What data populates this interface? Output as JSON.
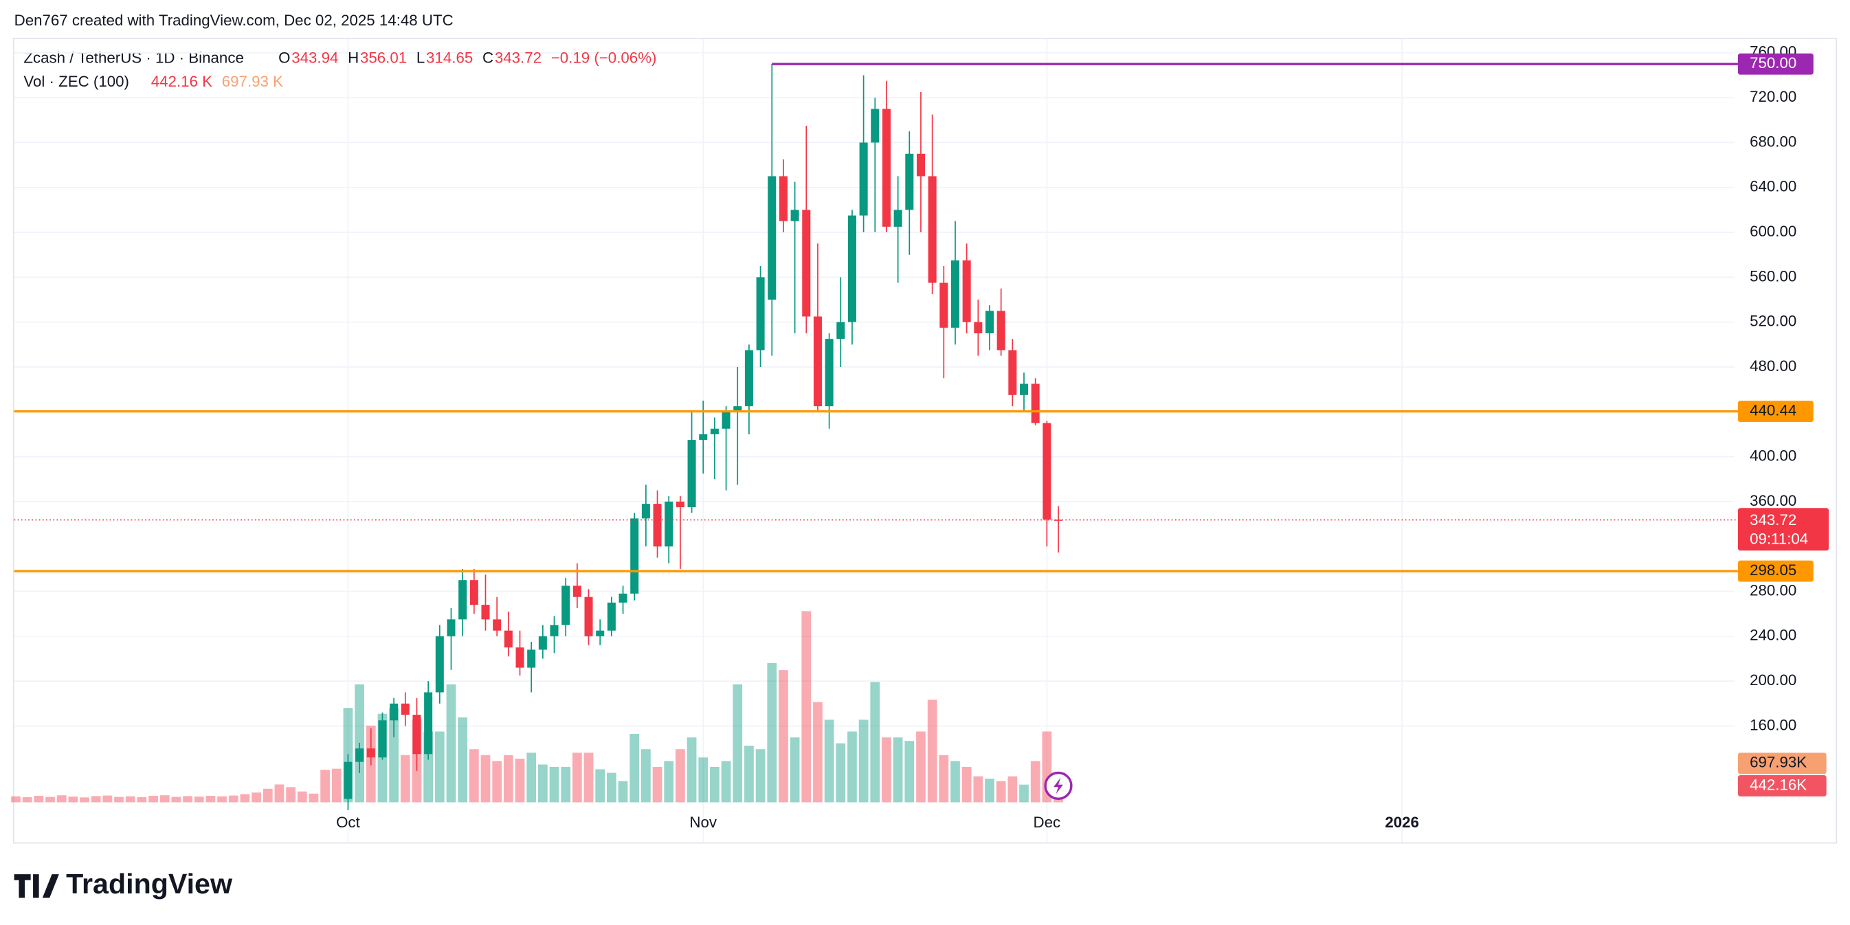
{
  "chart_data": {
    "type": "candlestick",
    "attribution": "Den767 created with TradingView.com, Dec 02, 2025 14:48 UTC",
    "title": "Zcash / TetherUS · 1D · Binance",
    "legend_keys": [
      "O",
      "H",
      "L",
      "C"
    ],
    "change": "−0.19 (−0.06%)",
    "volume_title": "Vol · ZEC (100)",
    "volume_legend": [
      {
        "value": 442.16,
        "label": "442.16 K"
      },
      {
        "value": 697.93,
        "label": "697.93 K"
      }
    ],
    "volume_badges": [
      {
        "value": 697.93,
        "label": "697.93K",
        "color": "#f7a172"
      },
      {
        "value": 442.16,
        "label": "442.16K",
        "color": "#f25462"
      }
    ],
    "countdown": "09:11:04",
    "brand": "TradingView",
    "up_color": "#089981",
    "down_color": "#f23645",
    "open": [
      null,
      null,
      null,
      null,
      null,
      null,
      null,
      null,
      null,
      null,
      null,
      null,
      null,
      null,
      null,
      null,
      null,
      null,
      null,
      null,
      null,
      null,
      null,
      null,
      null,
      null,
      null,
      null,
      null,
      95,
      128,
      140,
      132,
      165,
      180,
      170,
      135,
      190,
      240,
      255,
      290,
      268,
      255,
      245,
      230,
      212,
      228,
      240,
      250,
      285,
      275,
      240,
      245,
      270,
      278,
      345,
      358,
      320,
      360,
      355,
      415,
      420,
      425,
      440,
      445,
      495,
      540,
      650,
      610,
      620,
      525,
      445,
      505,
      520,
      615,
      680,
      710,
      605,
      620,
      670,
      650,
      555,
      515,
      575,
      520,
      510,
      530,
      495,
      455,
      465,
      430,
      343.94
    ],
    "high": [
      null,
      null,
      null,
      null,
      null,
      null,
      null,
      null,
      null,
      null,
      null,
      null,
      null,
      null,
      null,
      null,
      null,
      null,
      null,
      null,
      null,
      null,
      null,
      null,
      null,
      null,
      null,
      null,
      null,
      135,
      145,
      158,
      172,
      185,
      190,
      185,
      200,
      250,
      265,
      300,
      300,
      295,
      275,
      262,
      245,
      235,
      250,
      258,
      292,
      305,
      282,
      255,
      275,
      285,
      350,
      375,
      370,
      365,
      365,
      440,
      450,
      435,
      445,
      480,
      500,
      570,
      750,
      665,
      645,
      695,
      590,
      510,
      560,
      620,
      740,
      720,
      735,
      650,
      690,
      725,
      705,
      570,
      610,
      590,
      540,
      535,
      550,
      505,
      475,
      470,
      432,
      356.01
    ],
    "low": [
      null,
      null,
      null,
      null,
      null,
      null,
      null,
      null,
      null,
      null,
      null,
      null,
      null,
      null,
      null,
      null,
      null,
      null,
      null,
      null,
      null,
      null,
      null,
      null,
      null,
      null,
      null,
      null,
      null,
      85,
      118,
      125,
      130,
      150,
      160,
      120,
      130,
      180,
      210,
      240,
      260,
      245,
      240,
      222,
      205,
      190,
      220,
      225,
      240,
      265,
      232,
      232,
      240,
      260,
      272,
      320,
      310,
      305,
      300,
      350,
      385,
      380,
      370,
      375,
      420,
      480,
      490,
      600,
      510,
      510,
      440,
      425,
      480,
      500,
      600,
      600,
      600,
      555,
      580,
      600,
      545,
      470,
      500,
      510,
      490,
      495,
      490,
      445,
      440,
      428,
      320,
      314.65
    ],
    "close": [
      null,
      null,
      null,
      null,
      null,
      null,
      null,
      null,
      null,
      null,
      null,
      null,
      null,
      null,
      null,
      null,
      null,
      null,
      null,
      null,
      null,
      null,
      null,
      null,
      null,
      null,
      null,
      null,
      null,
      128,
      140,
      132,
      165,
      180,
      170,
      135,
      190,
      240,
      255,
      290,
      268,
      255,
      245,
      230,
      212,
      228,
      240,
      250,
      285,
      275,
      240,
      245,
      270,
      278,
      345,
      358,
      320,
      360,
      355,
      415,
      420,
      425,
      440,
      445,
      495,
      560,
      650,
      610,
      620,
      525,
      445,
      505,
      520,
      615,
      680,
      710,
      605,
      620,
      670,
      650,
      555,
      515,
      575,
      520,
      510,
      530,
      495,
      455,
      465,
      430,
      344,
      343.72
    ],
    "volume": [
      110,
      95,
      120,
      100,
      130,
      105,
      90,
      115,
      125,
      100,
      110,
      95,
      120,
      130,
      100,
      115,
      105,
      120,
      110,
      125,
      150,
      180,
      250,
      330,
      280,
      200,
      160,
      600,
      620,
      1744,
      2180,
      1417,
      1635,
      1744,
      872,
      1526,
      1308,
      1308,
      2180,
      1570,
      981,
      872,
      763,
      872,
      806,
      916,
      698,
      654,
      654,
      916,
      916,
      610,
      545,
      392,
      1264,
      981,
      654,
      763,
      981,
      1199,
      828,
      654,
      763,
      2180,
      1046,
      981,
      2572,
      2442,
      1199,
      3532,
      1853,
      1526,
      1090,
      1308,
      1526,
      2224,
      1199,
      1199,
      1134,
      1308,
      1897,
      872,
      763,
      654,
      480,
      436,
      392,
      480,
      327,
      763,
      1308,
      442.16
    ],
    "ylim": [
      92,
      765
    ],
    "yticks": [
      {
        "value": 160,
        "label": "160.00"
      },
      {
        "value": 200,
        "label": "200.00"
      },
      {
        "value": 240,
        "label": "240.00"
      },
      {
        "value": 280,
        "label": "280.00"
      },
      {
        "value": 360,
        "label": "360.00"
      },
      {
        "value": 400,
        "label": "400.00"
      },
      {
        "value": 480,
        "label": "480.00"
      },
      {
        "value": 520,
        "label": "520.00"
      },
      {
        "value": 560,
        "label": "560.00"
      },
      {
        "value": 600,
        "label": "600.00"
      },
      {
        "value": 640,
        "label": "640.00"
      },
      {
        "value": 680,
        "label": "680.00"
      },
      {
        "value": 720,
        "label": "720.00"
      },
      {
        "value": 760,
        "label": "760.00"
      }
    ],
    "xticks": [
      {
        "value": 29,
        "label": "Oct"
      },
      {
        "value": 60,
        "label": "Nov"
      },
      {
        "value": 90,
        "label": "Dec"
      },
      {
        "value": 121,
        "label": "2026"
      }
    ],
    "levels": [
      {
        "value": 750,
        "label": "750.00",
        "color": "#9c27b0"
      },
      {
        "value": 440.44,
        "label": "440.44",
        "color": "#ff9800"
      },
      {
        "value": 298.05,
        "label": "298.05",
        "color": "#ff9800"
      }
    ],
    "grid": true
  }
}
